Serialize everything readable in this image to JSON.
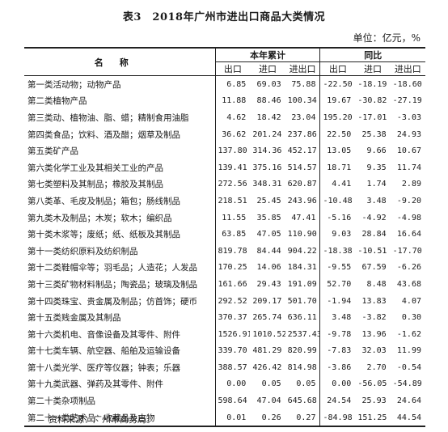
{
  "title": "表3　2018年广州市进出口商品大类情况",
  "unit": "单位：亿元，%",
  "header": {
    "name": "名称",
    "group_cumulative": "本年累计",
    "group_yoy": "同比",
    "export": "出口",
    "import": "进口",
    "total": "进出口"
  },
  "rows": [
    {
      "name": "第一类活动物；动物产品",
      "c1": "6.85",
      "c2": "69.03",
      "c3": "75.88",
      "c4": "-22.50",
      "c5": "-18.19",
      "c6": "-18.60"
    },
    {
      "name": "第二类植物产品",
      "c1": "11.88",
      "c2": "88.46",
      "c3": "100.34",
      "c4": "19.67",
      "c5": "-30.82",
      "c6": "-27.19"
    },
    {
      "name": "第三类动、植物油、脂、蜡；精制食用油脂",
      "c1": "4.62",
      "c2": "18.42",
      "c3": "23.04",
      "c4": "195.20",
      "c5": "-17.01",
      "c6": "-3.03"
    },
    {
      "name": "第四类食品；饮料、酒及醋；烟草及制品",
      "c1": "36.62",
      "c2": "201.24",
      "c3": "237.86",
      "c4": "22.50",
      "c5": "25.38",
      "c6": "24.93"
    },
    {
      "name": "第五类矿产品",
      "c1": "137.80",
      "c2": "314.36",
      "c3": "452.17",
      "c4": "13.05",
      "c5": "9.66",
      "c6": "10.67"
    },
    {
      "name": "第六类化学工业及其相关工业的产品",
      "c1": "139.41",
      "c2": "375.16",
      "c3": "514.57",
      "c4": "18.71",
      "c5": "9.35",
      "c6": "11.74"
    },
    {
      "name": "第七类塑料及其制品；橡胶及其制品",
      "c1": "272.56",
      "c2": "348.31",
      "c3": "620.87",
      "c4": "4.41",
      "c5": "1.74",
      "c6": "2.89"
    },
    {
      "name": "第八类革、毛皮及制品；箱包；肠线制品",
      "c1": "218.51",
      "c2": "25.45",
      "c3": "243.96",
      "c4": "-10.48",
      "c5": "3.48",
      "c6": "-9.20"
    },
    {
      "name": "第九类木及制品；木炭；软木；编织品",
      "c1": "11.55",
      "c2": "35.85",
      "c3": "47.41",
      "c4": "-5.16",
      "c5": "-4.92",
      "c6": "-4.98"
    },
    {
      "name": "第十类木浆等；废纸；纸、纸板及其制品",
      "c1": "63.85",
      "c2": "47.05",
      "c3": "110.90",
      "c4": "9.03",
      "c5": "28.84",
      "c6": "16.64"
    },
    {
      "name": "第十一类纺织原料及纺织制品",
      "c1": "819.78",
      "c2": "84.44",
      "c3": "904.22",
      "c4": "-18.38",
      "c5": "-10.51",
      "c6": "-17.70"
    },
    {
      "name": "第十二类鞋帽伞等；羽毛品；人造花；人发品",
      "c1": "170.25",
      "c2": "14.06",
      "c3": "184.31",
      "c4": "-9.55",
      "c5": "67.59",
      "c6": "-6.26"
    },
    {
      "name": "第十三类矿物材料制品；陶瓷品；玻璃及制品",
      "c1": "161.66",
      "c2": "29.43",
      "c3": "191.09",
      "c4": "52.70",
      "c5": "8.48",
      "c6": "43.68"
    },
    {
      "name": "第十四类珠宝、贵金属及制品；仿首饰；硬币",
      "c1": "292.52",
      "c2": "209.17",
      "c3": "501.70",
      "c4": "-1.94",
      "c5": "13.83",
      "c6": "4.07"
    },
    {
      "name": "第十五类贱金属及其制品",
      "c1": "370.37",
      "c2": "265.74",
      "c3": "636.11",
      "c4": "3.48",
      "c5": "-3.82",
      "c6": "0.30"
    },
    {
      "name": "第十六类机电、音像设备及其零件、附件",
      "c1": "1526.91",
      "c2": "1010.52",
      "c3": "2537.43",
      "c4": "-9.78",
      "c5": "13.96",
      "c6": "-1.62"
    },
    {
      "name": "第十七类车辆、航空器、船舶及运输设备",
      "c1": "339.70",
      "c2": "481.29",
      "c3": "820.99",
      "c4": "-7.83",
      "c5": "32.03",
      "c6": "11.99"
    },
    {
      "name": "第十八类光学、医疗等仪器；钟表；乐器",
      "c1": "388.57",
      "c2": "426.42",
      "c3": "814.98",
      "c4": "-3.86",
      "c5": "2.70",
      "c6": "-0.54"
    },
    {
      "name": "第十九类武器、弹药及其零件、附件",
      "c1": "0.00",
      "c2": "0.05",
      "c3": "0.05",
      "c4": "0.00",
      "c5": "-56.05",
      "c6": "-54.89"
    },
    {
      "name": "第二十类杂项制品",
      "c1": "598.64",
      "c2": "47.04",
      "c3": "645.68",
      "c4": "24.54",
      "c5": "25.93",
      "c6": "24.64"
    },
    {
      "name": "第二十一类艺术品、收藏品及古物",
      "c1": "0.01",
      "c2": "0.26",
      "c3": "0.27",
      "c4": "-84.98",
      "c5": "151.25",
      "c6": "44.54"
    }
  ],
  "source": "资料来源：广州市商务局。"
}
